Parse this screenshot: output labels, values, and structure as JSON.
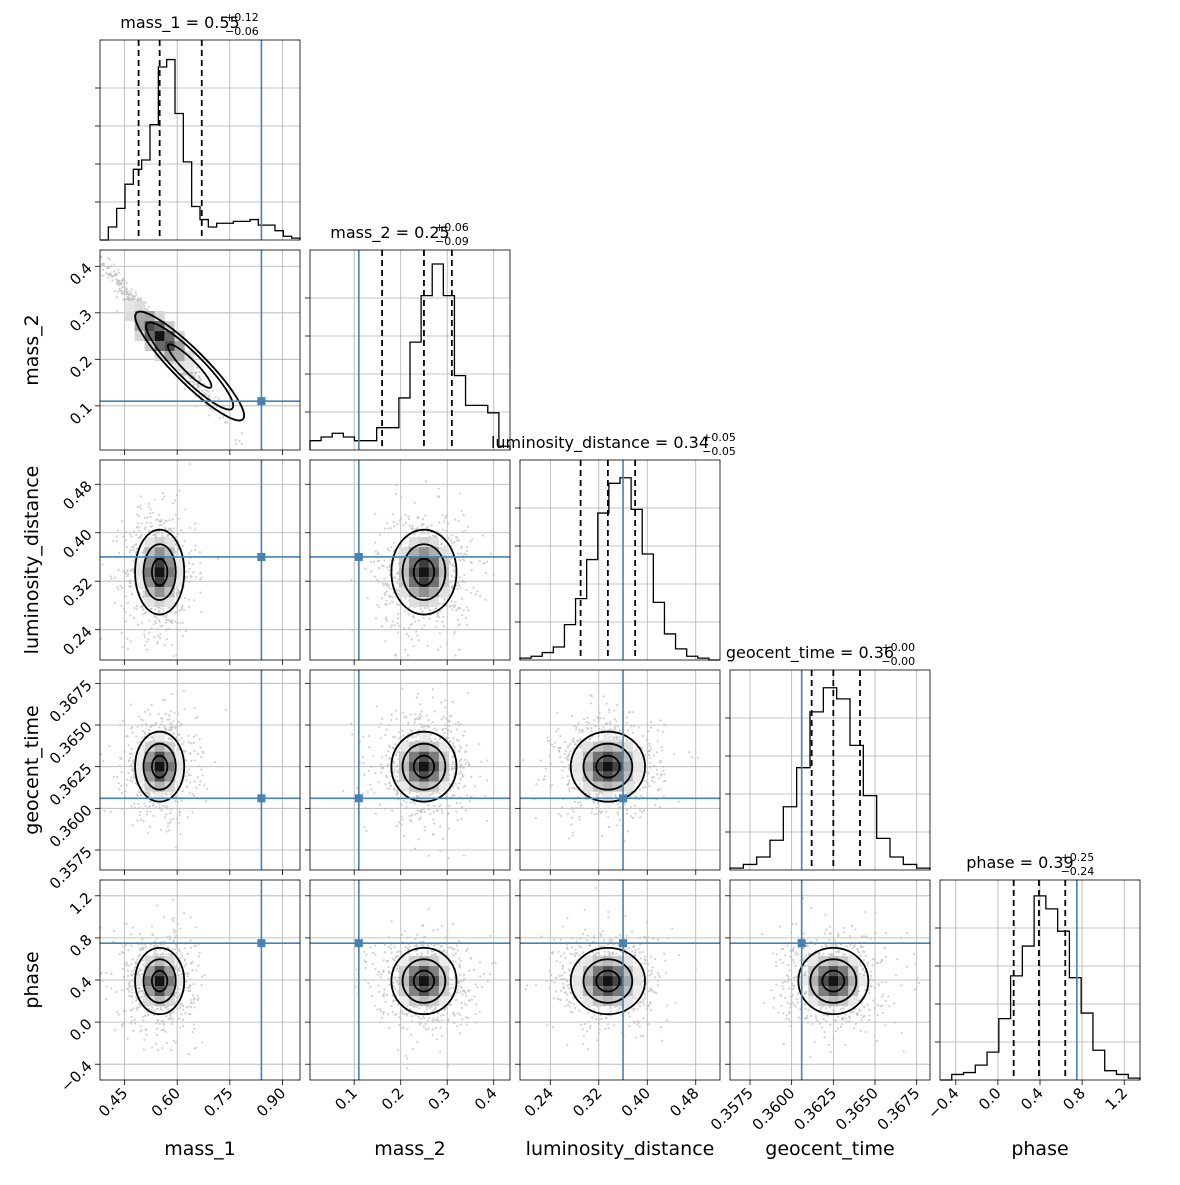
{
  "chart_data": {
    "type": "corner",
    "parameters": [
      {
        "name": "mass_1",
        "label": "mass_1",
        "range": [
          0.38,
          0.95
        ],
        "ticks": [
          0.45,
          0.6,
          0.75,
          0.9
        ],
        "tick_labels": [
          "0.45",
          "0.60",
          "0.75",
          "0.90"
        ],
        "median": 0.55,
        "plus": 0.12,
        "minus": 0.06,
        "title": "mass_1 = 0.55",
        "title_sup": "+0.12",
        "title_sub": "−0.06",
        "truth": 0.84
      },
      {
        "name": "mass_2",
        "label": "mass_2",
        "range": [
          0.005,
          0.435
        ],
        "ticks": [
          0.1,
          0.2,
          0.3,
          0.4
        ],
        "tick_labels": [
          "0.1",
          "0.2",
          "0.3",
          "0.4"
        ],
        "median": 0.25,
        "plus": 0.06,
        "minus": 0.09,
        "title": "mass_2 = 0.25",
        "title_sup": "+0.06",
        "title_sub": "−0.09",
        "truth": 0.11
      },
      {
        "name": "luminosity_distance",
        "label": "luminosity_distance",
        "range": [
          0.19,
          0.52
        ],
        "ticks": [
          0.24,
          0.32,
          0.4,
          0.48
        ],
        "tick_labels": [
          "0.24",
          "0.32",
          "0.40",
          "0.48"
        ],
        "median": 0.34,
        "plus": 0.05,
        "minus": 0.05,
        "title": "luminosity_distance = 0.34",
        "title_sup": "+0.05",
        "title_sub": "−0.05",
        "truth": 0.36
      },
      {
        "name": "geocent_time",
        "label": "geocent_time",
        "range": [
          0.3563,
          0.3683
        ],
        "ticks": [
          0.3575,
          0.36,
          0.3625,
          0.365,
          0.3675
        ],
        "tick_labels": [
          "0.3575",
          "0.3600",
          "0.3625",
          "0.3650",
          "0.3675"
        ],
        "median": 0.36,
        "plus": 0.0,
        "minus": 0.0,
        "title": "geocent_time = 0.36",
        "title_sup": "+0.00",
        "title_sub": "−0.00",
        "truth": 0.3606
      },
      {
        "name": "phase",
        "label": "phase",
        "range": [
          -0.55,
          1.35
        ],
        "ticks": [
          -0.4,
          0.0,
          0.4,
          0.8,
          1.2
        ],
        "tick_labels": [
          "−0.4",
          "0.0",
          "0.4",
          "0.8",
          "1.2"
        ],
        "median": 0.39,
        "plus": 0.25,
        "minus": 0.24,
        "title": "phase = 0.39",
        "title_sup": "+0.25",
        "title_sub": "−0.24",
        "truth": 0.75
      }
    ],
    "quantiles": [
      [
        0.49,
        0.55,
        0.67
      ],
      [
        0.16,
        0.25,
        0.31
      ],
      [
        0.29,
        0.335,
        0.38
      ],
      [
        0.3612,
        0.3625,
        0.3641
      ],
      [
        0.15,
        0.39,
        0.64
      ]
    ],
    "histograms": [
      [
        0.0,
        0.07,
        0.17,
        0.3,
        0.38,
        0.43,
        0.62,
        0.93,
        0.97,
        0.68,
        0.42,
        0.18,
        0.11,
        0.07,
        0.09,
        0.09,
        0.1,
        0.1,
        0.11,
        0.08,
        0.08,
        0.05,
        0.02,
        0.01
      ],
      [
        0.05,
        0.07,
        0.09,
        0.07,
        0.05,
        0.05,
        0.12,
        0.12,
        0.28,
        0.58,
        0.83,
        1.0,
        0.83,
        0.4,
        0.24,
        0.24,
        0.2,
        0.02
      ],
      [
        0.01,
        0.02,
        0.04,
        0.07,
        0.19,
        0.33,
        0.54,
        0.79,
        0.95,
        0.98,
        0.81,
        0.57,
        0.31,
        0.14,
        0.06,
        0.02,
        0.01,
        0.0
      ],
      [
        0.01,
        0.03,
        0.07,
        0.16,
        0.34,
        0.55,
        0.85,
        0.98,
        0.92,
        0.67,
        0.4,
        0.17,
        0.07,
        0.03,
        0.01
      ],
      [
        0.0,
        0.03,
        0.04,
        0.08,
        0.15,
        0.33,
        0.56,
        0.72,
        0.99,
        0.92,
        0.8,
        0.55,
        0.36,
        0.16,
        0.05,
        0.03,
        0.01
      ]
    ],
    "samples_2d": [
      {
        "x": 0,
        "y": 1,
        "center": [
          0.55,
          0.25
        ],
        "sigma": [
          0.06,
          0.06
        ],
        "rho": -0.98
      },
      {
        "x": 0,
        "y": 2,
        "center": [
          0.55,
          0.335
        ],
        "sigma": [
          0.04,
          0.04
        ],
        "rho": 0.0
      },
      {
        "x": 1,
        "y": 2,
        "center": [
          0.25,
          0.335
        ],
        "sigma": [
          0.04,
          0.04
        ],
        "rho": 0.0
      },
      {
        "x": 2,
        "y": 3,
        "center": [
          0.335,
          0.3625
        ],
        "sigma": [
          0.035,
          0.0012
        ],
        "rho": 0.0
      },
      {
        "x": 0,
        "y": 3,
        "center": [
          0.55,
          0.3625
        ],
        "sigma": [
          0.04,
          0.0012
        ],
        "rho": 0.0
      },
      {
        "x": 1,
        "y": 3,
        "center": [
          0.25,
          0.3625
        ],
        "sigma": [
          0.04,
          0.0012
        ],
        "rho": 0.0
      },
      {
        "x": 0,
        "y": 4,
        "center": [
          0.55,
          0.39
        ],
        "sigma": [
          0.04,
          0.18
        ],
        "rho": 0.0
      },
      {
        "x": 1,
        "y": 4,
        "center": [
          0.25,
          0.39
        ],
        "sigma": [
          0.04,
          0.18
        ],
        "rho": 0.0
      },
      {
        "x": 2,
        "y": 4,
        "center": [
          0.335,
          0.39
        ],
        "sigma": [
          0.035,
          0.18
        ],
        "rho": 0.0
      },
      {
        "x": 3,
        "y": 4,
        "center": [
          0.3625,
          0.39
        ],
        "sigma": [
          0.0012,
          0.18
        ],
        "rho": 0.0
      }
    ],
    "truth_color": "#4682b4",
    "grid": true
  }
}
